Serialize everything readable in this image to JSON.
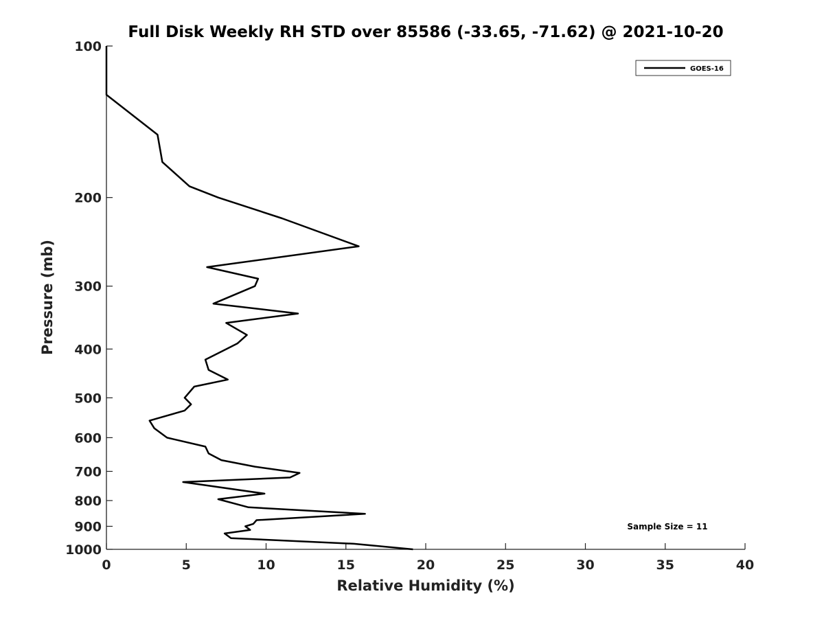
{
  "chart_data": {
    "type": "line",
    "title": "Full Disk Weekly RH STD over 85586 (-33.65, -71.62) @ 2021-10-20",
    "xlabel": "Relative Humidity (%)",
    "ylabel": "Pressure (mb)",
    "xlim": [
      0,
      40
    ],
    "ylim": [
      100,
      1000
    ],
    "y_scale": "log",
    "y_reversed": true,
    "x_ticks": [
      "0",
      "5",
      "10",
      "15",
      "20",
      "25",
      "30",
      "35",
      "40"
    ],
    "y_ticks": [
      "100",
      "200",
      "300",
      "400",
      "500",
      "600",
      "700",
      "800",
      "900",
      "1000"
    ],
    "grid": false,
    "legend_position": "top-right",
    "annotation": "Sample Size = 11",
    "series": [
      {
        "name": "GOES-16",
        "color": "#000000",
        "points": [
          [
            0,
            100
          ],
          [
            0,
            125
          ],
          [
            3.2,
            150
          ],
          [
            3.5,
            170
          ],
          [
            5.2,
            190
          ],
          [
            7.0,
            200
          ],
          [
            11.0,
            220
          ],
          [
            15.8,
            250
          ],
          [
            6.3,
            275
          ],
          [
            9.5,
            290
          ],
          [
            9.3,
            300
          ],
          [
            6.7,
            325
          ],
          [
            12.0,
            340
          ],
          [
            7.5,
            355
          ],
          [
            8.8,
            375
          ],
          [
            8.2,
            390
          ],
          [
            6.2,
            420
          ],
          [
            6.4,
            440
          ],
          [
            7.6,
            460
          ],
          [
            5.5,
            475
          ],
          [
            4.9,
            500
          ],
          [
            5.3,
            515
          ],
          [
            4.9,
            530
          ],
          [
            2.7,
            555
          ],
          [
            3.0,
            575
          ],
          [
            3.8,
            600
          ],
          [
            6.2,
            625
          ],
          [
            6.4,
            645
          ],
          [
            7.2,
            665
          ],
          [
            9.3,
            685
          ],
          [
            12.1,
            705
          ],
          [
            11.5,
            720
          ],
          [
            4.8,
            735
          ],
          [
            9.9,
            775
          ],
          [
            7.0,
            795
          ],
          [
            8.9,
            825
          ],
          [
            16.2,
            850
          ],
          [
            9.4,
            875
          ],
          [
            9.2,
            890
          ],
          [
            8.7,
            900
          ],
          [
            9.0,
            915
          ],
          [
            7.4,
            930
          ],
          [
            7.8,
            950
          ],
          [
            15.5,
            975
          ],
          [
            19.2,
            1000
          ]
        ]
      }
    ]
  }
}
